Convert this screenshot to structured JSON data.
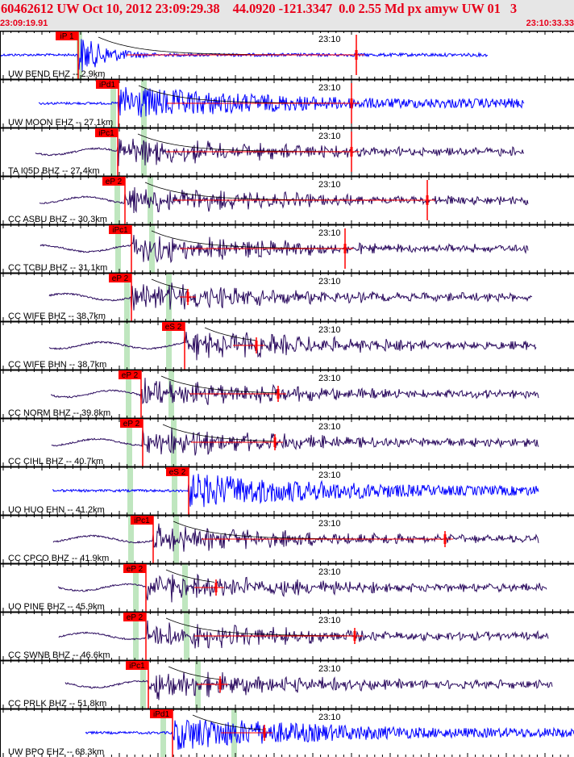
{
  "header": {
    "title": "60462612 UW Oct 10, 2012 23:09:29.38    44.0920 -121.3347  0.0 2.55 Md px amyw UW 01   3",
    "start_time": "23:09:19.91",
    "end_time": "23:10:33.33"
  },
  "minute_label": "23:10",
  "colors": {
    "header_text": "#e8001a",
    "pick": "#ff0000",
    "trace_short": "#0000ff",
    "trace_broadband": "#2a0a5e",
    "pick_window": "#bfe6bf",
    "header_bg": "#e6e6e6"
  },
  "channels": [
    {
      "label": "UW BEND EHZ -- 2.9km",
      "pick": "iP 1",
      "trace_color": "#0000ff"
    },
    {
      "label": "UW MOON EHZ -- 27.1km",
      "pick": "iPd1",
      "trace_color": "#0000ff"
    },
    {
      "label": "TA I05D BHZ -- 27.4km",
      "pick": "iPc1",
      "trace_color": "#2a0a5e"
    },
    {
      "label": "CC ASBU BHZ -- 30.3km",
      "pick": "eP 2",
      "trace_color": "#2a0a5e"
    },
    {
      "label": "CC TCBU BHZ -- 31.1km",
      "pick": "iPc1",
      "trace_color": "#2a0a5e"
    },
    {
      "label": "CC WIFE BHZ -- 38.7km",
      "pick": "eP 2",
      "trace_color": "#2a0a5e"
    },
    {
      "label": "CC WIFE BHN -- 38.7km",
      "pick": "eS 2",
      "trace_color": "#2a0a5e"
    },
    {
      "label": "CC NORM BHZ -- 39.8km",
      "pick": "eP 2",
      "trace_color": "#2a0a5e"
    },
    {
      "label": "CC CIHL BHZ -- 40.7km",
      "pick": "eP 2",
      "trace_color": "#2a0a5e"
    },
    {
      "label": "UO HUO EHN -- 41.2km",
      "pick": "eS 2",
      "trace_color": "#0000ff"
    },
    {
      "label": "CC CPCO BHZ -- 41.9km",
      "pick": "iPc1",
      "trace_color": "#2a0a5e"
    },
    {
      "label": "UO PINE BHZ -- 45.9km",
      "pick": "eP 2",
      "trace_color": "#2a0a5e"
    },
    {
      "label": "CC SWNB BHZ -- 46.6km",
      "pick": "eP 2",
      "trace_color": "#2a0a5e"
    },
    {
      "label": "CC PRLK BHZ -- 51.8km",
      "pick": "iPc1",
      "trace_color": "#2a0a5e"
    },
    {
      "label": "UW BPO EHZ -- 68.3km",
      "pick": "iPd1",
      "trace_color": "#0000ff"
    }
  ]
}
